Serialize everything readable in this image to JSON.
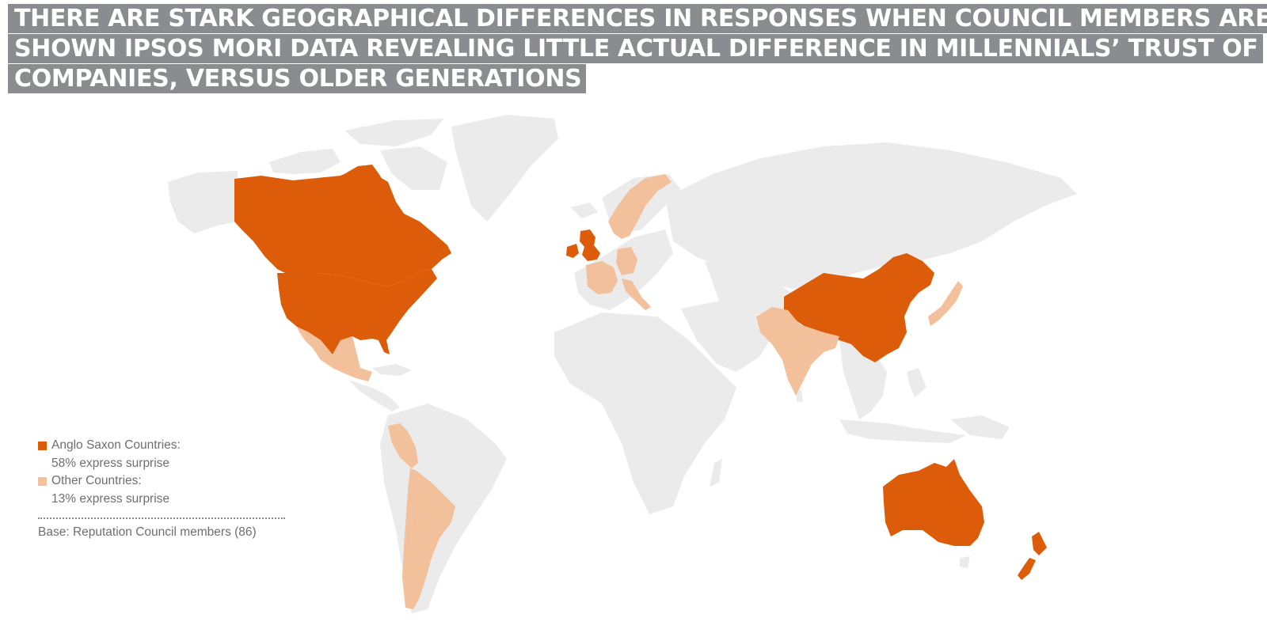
{
  "title": {
    "lines": [
      "THERE ARE STARK GEOGRAPHICAL DIFFERENCES IN RESPONSES WHEN COUNCIL MEMBERS ARE",
      "SHOWN IPSOS MORI DATA REVEALING LITTLE ACTUAL DIFFERENCE IN MILLENNIALS’ TRUST OF",
      "COMPANIES, VERSUS OLDER GENERATIONS"
    ]
  },
  "colors": {
    "anglo_saxon": "#dd5c0a",
    "other": "#f2c09a",
    "land": "#ebebeb",
    "title_bg": "#8a8c8f",
    "text": "#6d6e71"
  },
  "legend": {
    "items": [
      {
        "label": "Anglo Saxon Countries:",
        "value": "58% express surprise",
        "color": "#dd5c0a"
      },
      {
        "label": "Other Countries:",
        "value": "13% express surprise",
        "color": "#f2c09a"
      }
    ],
    "base": "Base: Reputation Council members (86)"
  },
  "map_data": {
    "anglo_saxon_countries": [
      "Canada",
      "United States",
      "United Kingdom",
      "Ireland",
      "China",
      "Australia",
      "New Zealand"
    ],
    "other_countries": [
      "Mexico",
      "Peru",
      "Chile",
      "Argentina",
      "Norway",
      "Sweden",
      "France",
      "Germany",
      "Italy",
      "India",
      "Japan"
    ],
    "anglo_saxon_value": "58% express surprise",
    "other_value": "13% express surprise"
  }
}
